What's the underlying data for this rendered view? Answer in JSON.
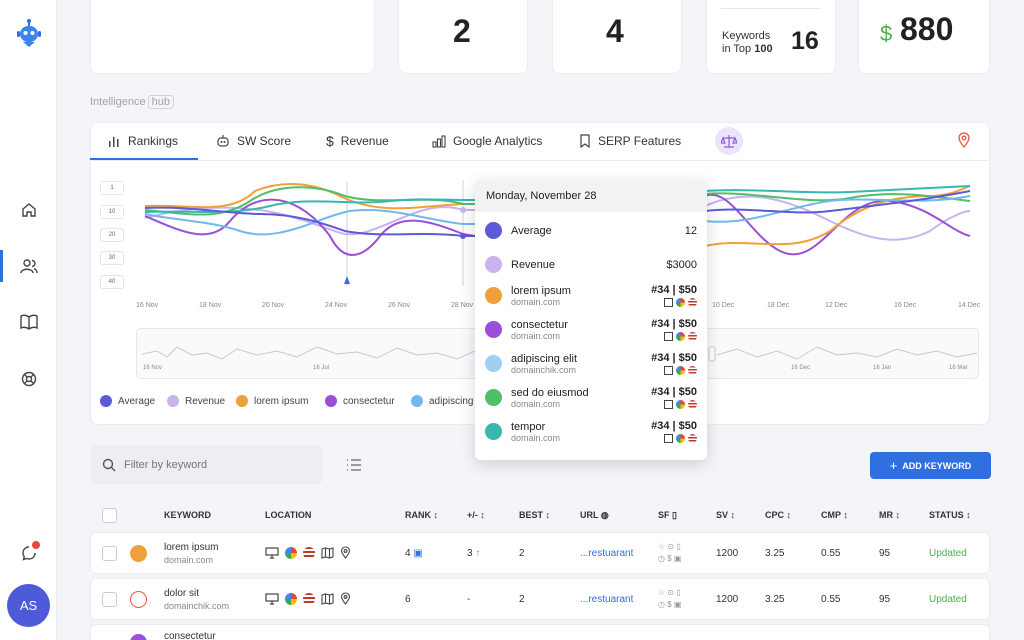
{
  "sidebar": {
    "logo": "robot-logo-icon",
    "nav": [
      "home-icon",
      "users-icon",
      "book-icon",
      "support-icon"
    ],
    "notifications": "chat-bell-icon",
    "avatar_initials": "AS"
  },
  "stats": {
    "stat1": "2",
    "stat2": "4",
    "top100_label_line1": "Keywords",
    "top100_label_line2": "in Top",
    "top100_label_num": "100",
    "top100_value": "16",
    "revenue_symbol": "$",
    "revenue_value": "880"
  },
  "hub": {
    "title": "Intelligence",
    "tag": "hub"
  },
  "tabs": [
    {
      "label": "Rankings"
    },
    {
      "label": "SW Score"
    },
    {
      "label": "Revenue"
    },
    {
      "label": "Google Analytics"
    },
    {
      "label": "SERP Features"
    }
  ],
  "chart_data": {
    "type": "line",
    "y_ticks": [
      "1",
      "10",
      "20",
      "30",
      "40"
    ],
    "x_ticks": [
      "16 Nov",
      "18 Nov",
      "20 Nov",
      "24 Nov",
      "26 Nov",
      "28 Nov",
      "10 Dec",
      "18 Dec",
      "12 Dec",
      "16 Dec",
      "14 Dec"
    ],
    "navigator_ticks": [
      "16 Nov",
      "16 Jul",
      "16 Dec",
      "16 Jan",
      "16 Mar"
    ],
    "series": [
      {
        "name": "Average",
        "color": "#5b5bd6"
      },
      {
        "name": "Revenue",
        "color": "#b99ae6"
      },
      {
        "name": "lorem ipsum",
        "color": "#f0a03a"
      },
      {
        "name": "consectetur",
        "color": "#9b4fd9"
      },
      {
        "name": "adipiscing",
        "color": "#72b8ec"
      },
      {
        "name": "sed do eiusmod",
        "color": "#4fbf6a"
      },
      {
        "name": "tempor",
        "color": "#38b6b0"
      }
    ]
  },
  "tooltip": {
    "date": "Monday, November 28",
    "rows": [
      {
        "name": "Average",
        "value": "12",
        "color": "#5b5bd6"
      },
      {
        "name": "Revenue",
        "value": "$3000",
        "color": "#b99ae6"
      },
      {
        "name": "lorem ipsum",
        "domain": "domain.com",
        "rank": "#34",
        "price": "$50",
        "color": "#f0a03a"
      },
      {
        "name": "consectetur",
        "domain": "domain.com",
        "rank": "#34",
        "price": "$50",
        "color": "#9b4fd9"
      },
      {
        "name": "adipiscing elit",
        "domain": "domainchik.com",
        "rank": "#34",
        "price": "$50",
        "color": "#9fd0f2"
      },
      {
        "name": "sed do eiusmod",
        "domain": "domain.com",
        "rank": "#34",
        "price": "$50",
        "color": "#4fbf6a"
      },
      {
        "name": "tempor",
        "domain": "domain.com",
        "rank": "#34",
        "price": "$50",
        "color": "#38b6b0"
      }
    ]
  },
  "filter": {
    "placeholder": "Filter by keyword"
  },
  "add_keyword": "ADD KEYWORD",
  "table": {
    "headers": [
      "KEYWORD",
      "LOCATION",
      "RANK",
      "+/-",
      "BEST",
      "URL",
      "SF",
      "SV",
      "CPC",
      "CMP",
      "MR",
      "STATUS"
    ],
    "rows": [
      {
        "keyword": "lorem ipsum",
        "domain": "domain.com",
        "rank": "4",
        "change": "3",
        "best": "2",
        "url": "...restuarant",
        "sv": "1200",
        "cpc": "3.25",
        "cmp": "0.55",
        "mr": "95",
        "status": "Updated"
      },
      {
        "keyword": "dolor sit",
        "domain": "domainchik.com",
        "rank": "6",
        "change": "-",
        "best": "2",
        "url": "...restuarant",
        "sv": "1200",
        "cpc": "3.25",
        "cmp": "0.55",
        "mr": "95",
        "status": "Updated"
      },
      {
        "keyword": "consectetur"
      }
    ]
  }
}
